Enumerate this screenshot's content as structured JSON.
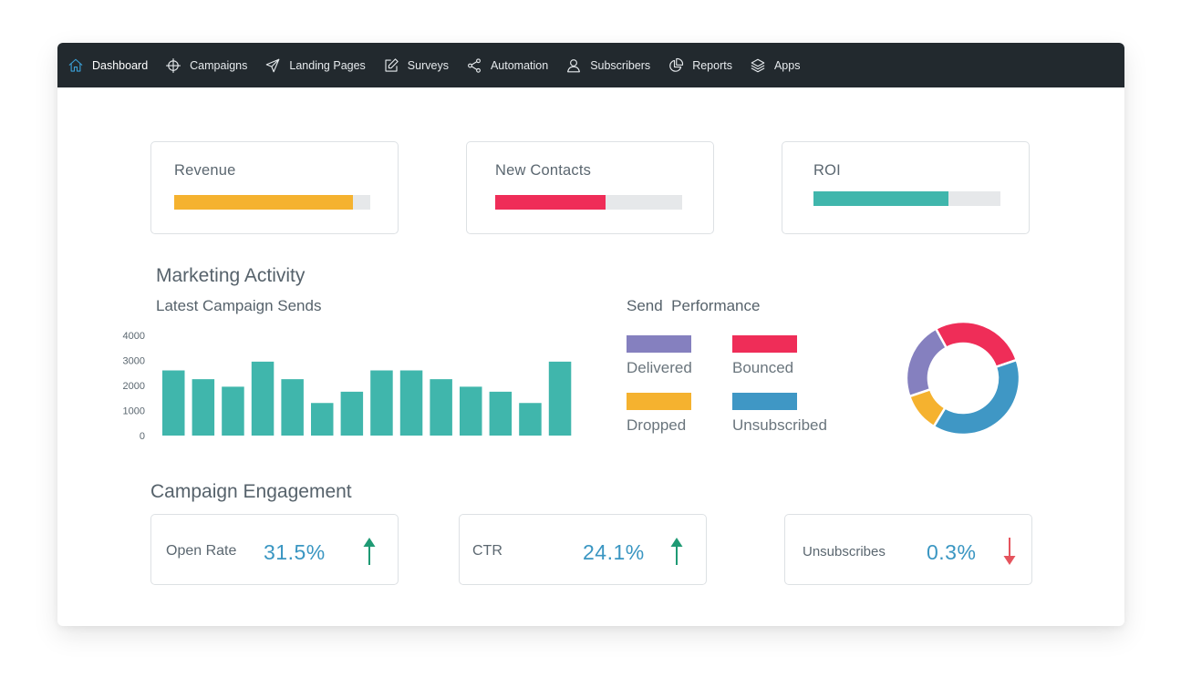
{
  "nav": {
    "items": [
      {
        "label": "Dashboard",
        "icon": "home-icon",
        "active": true
      },
      {
        "label": "Campaigns",
        "icon": "crosshair-icon"
      },
      {
        "label": "Landing Pages",
        "icon": "send-icon"
      },
      {
        "label": "Surveys",
        "icon": "edit-icon"
      },
      {
        "label": "Automation",
        "icon": "share-icon"
      },
      {
        "label": "Subscribers",
        "icon": "user-icon"
      },
      {
        "label": "Reports",
        "icon": "pie-chart-icon"
      },
      {
        "label": "Apps",
        "icon": "layers-icon"
      }
    ]
  },
  "kpis": [
    {
      "label": "Revenue",
      "progress": 0.91,
      "color": "#f5b22f"
    },
    {
      "label": "New Contacts",
      "progress": 0.59,
      "color": "#ef2d58"
    },
    {
      "label": "ROI",
      "progress": 0.72,
      "color": "#40b6ac"
    }
  ],
  "marketing": {
    "title": "Marketing Activity",
    "sends_title": "Latest Campaign Sends",
    "performance_title": "Send  Performance"
  },
  "chart_data": [
    {
      "type": "bar",
      "title": "Latest Campaign Sends",
      "y_ticks": [
        "4000",
        "3000",
        "2000",
        "1000",
        "0"
      ],
      "ylim": [
        0,
        4000
      ],
      "values": [
        2600,
        2250,
        1950,
        2950,
        2250,
        1300,
        1750,
        2600,
        2600,
        2250,
        1950,
        1750,
        1300,
        2950
      ],
      "color": "#40b6ac",
      "grid": false
    },
    {
      "type": "pie",
      "title": "Send  Performance",
      "slices": [
        {
          "label": "Bounced",
          "value": 25,
          "color": "#ef2d58"
        },
        {
          "label": "Unsubscribed",
          "value": 35,
          "color": "#3f97c5"
        },
        {
          "label": "Dropped",
          "value": 10,
          "color": "#f5b22f"
        },
        {
          "label": "Delivered",
          "value": 20,
          "color": "#8580bf"
        }
      ]
    }
  ],
  "legend": [
    {
      "label": "Delivered",
      "color": "#8580bf"
    },
    {
      "label": "Bounced",
      "color": "#ef2d58"
    },
    {
      "label": "Dropped",
      "color": "#f5b22f"
    },
    {
      "label": "Unsubscribed",
      "color": "#3f97c5"
    }
  ],
  "engagement": {
    "title": "Campaign Engagement",
    "cards": [
      {
        "label": "Open Rate",
        "value": "31.5%",
        "trend": "up",
        "trend_color": "#1f9a74"
      },
      {
        "label": "CTR",
        "value": "24.1%",
        "trend": "up",
        "trend_color": "#1f9a74"
      },
      {
        "label": "Unsubscribes",
        "value": "0.3%",
        "trend": "down",
        "trend_color": "#e5545d"
      }
    ]
  }
}
